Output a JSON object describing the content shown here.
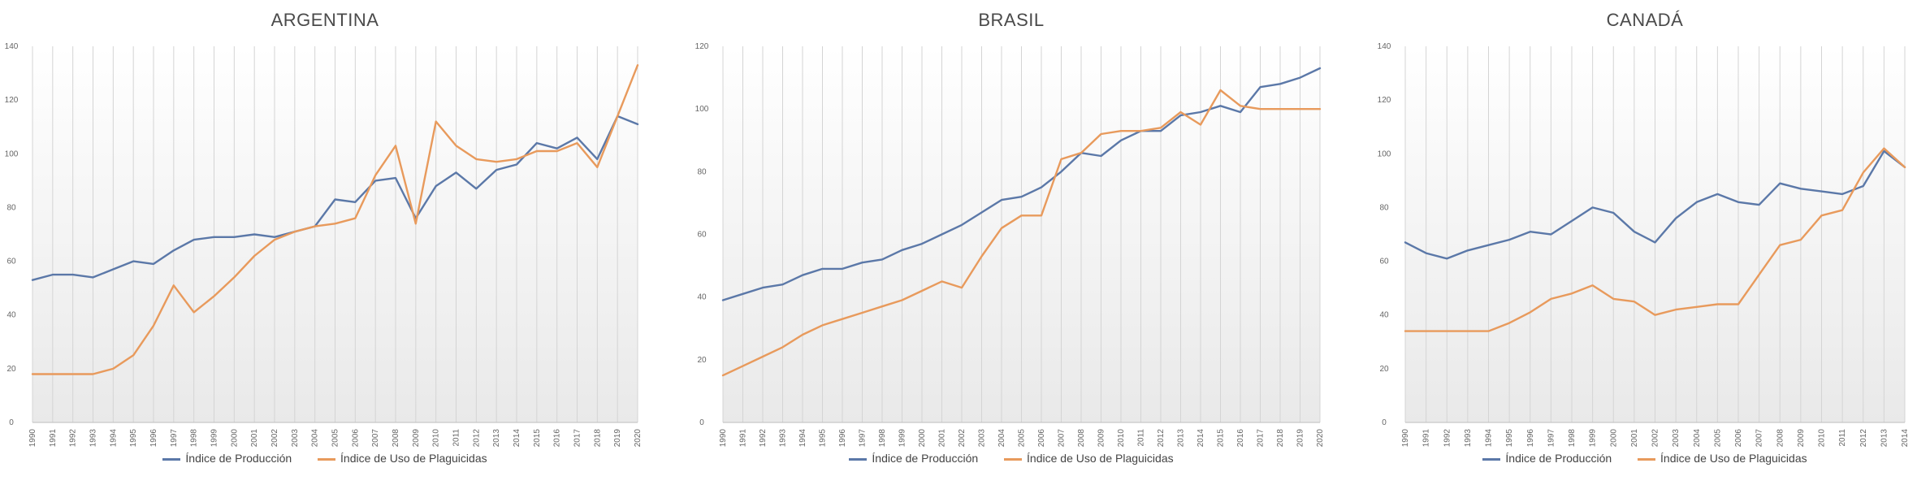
{
  "legend": {
    "production": "Índice de Producción",
    "pesticides": "Índice de Uso de Plaguicidas"
  },
  "colors": {
    "production": "#5b78a8",
    "pesticides": "#e89a5c"
  },
  "chart_data": [
    {
      "type": "line",
      "title": "ARGENTINA",
      "ylim": [
        0,
        140
      ],
      "yticks": [
        0,
        20,
        40,
        60,
        80,
        100,
        120,
        140
      ],
      "x": [
        "1990",
        "1991",
        "1992",
        "1993",
        "1994",
        "1995",
        "1996",
        "1997",
        "1998",
        "1999",
        "2000",
        "2001",
        "2002",
        "2003",
        "2004",
        "2005",
        "2006",
        "2007",
        "2008",
        "2009",
        "2010",
        "2011",
        "2012",
        "2013",
        "2014",
        "2015",
        "2016",
        "2017",
        "2018",
        "2019",
        "2020"
      ],
      "series": [
        {
          "name": "Índice de Producción",
          "values": [
            53,
            55,
            55,
            54,
            57,
            60,
            59,
            64,
            68,
            69,
            69,
            70,
            69,
            71,
            73,
            83,
            82,
            90,
            91,
            76,
            88,
            93,
            87,
            94,
            96,
            104,
            102,
            106,
            98,
            114,
            111
          ]
        },
        {
          "name": "Índice de Uso de Plaguicidas",
          "values": [
            18,
            18,
            18,
            18,
            20,
            25,
            36,
            51,
            41,
            47,
            54,
            62,
            68,
            71,
            73,
            74,
            76,
            92,
            103,
            74,
            112,
            103,
            98,
            97,
            98,
            101,
            101,
            104,
            95,
            114,
            133
          ]
        }
      ],
      "grid": true,
      "legend_position": "bottom"
    },
    {
      "type": "line",
      "title": "BRASIL",
      "ylim": [
        0,
        120
      ],
      "yticks": [
        0,
        20,
        40,
        60,
        80,
        100,
        120
      ],
      "x": [
        "1990",
        "1991",
        "1992",
        "1993",
        "1994",
        "1995",
        "1996",
        "1997",
        "1998",
        "1999",
        "2000",
        "2001",
        "2002",
        "2003",
        "2004",
        "2005",
        "2006",
        "2007",
        "2008",
        "2009",
        "2010",
        "2011",
        "2012",
        "2013",
        "2014",
        "2015",
        "2016",
        "2017",
        "2018",
        "2019",
        "2020"
      ],
      "series": [
        {
          "name": "Índice de Producción",
          "values": [
            39,
            41,
            43,
            44,
            47,
            49,
            49,
            51,
            52,
            55,
            57,
            60,
            63,
            67,
            71,
            72,
            75,
            80,
            86,
            85,
            90,
            93,
            93,
            98,
            99,
            101,
            99,
            107,
            108,
            110,
            113
          ]
        },
        {
          "name": "Índice de Uso de Plaguicidas",
          "values": [
            15,
            18,
            21,
            24,
            28,
            31,
            33,
            35,
            37,
            39,
            42,
            45,
            43,
            53,
            62,
            66,
            66,
            84,
            86,
            92,
            93,
            93,
            94,
            99,
            95,
            106,
            101,
            100,
            100,
            100,
            100
          ]
        }
      ],
      "grid": true,
      "legend_position": "bottom"
    },
    {
      "type": "line",
      "title": "CANADÁ",
      "ylim": [
        0,
        140
      ],
      "yticks": [
        0,
        20,
        40,
        60,
        80,
        100,
        120,
        140
      ],
      "x": [
        "1990",
        "1991",
        "1992",
        "1993",
        "1994",
        "1995",
        "1996",
        "1997",
        "1998",
        "1999",
        "2000",
        "2001",
        "2002",
        "2003",
        "2004",
        "2005",
        "2006",
        "2007",
        "2008",
        "2009",
        "2010",
        "2011",
        "2012",
        "2013",
        "2014"
      ],
      "series": [
        {
          "name": "Índice de Producción",
          "values": [
            67,
            63,
            61,
            64,
            66,
            68,
            71,
            70,
            75,
            80,
            78,
            71,
            67,
            76,
            82,
            85,
            82,
            81,
            89,
            87,
            86,
            85,
            88,
            101,
            95
          ]
        },
        {
          "name": "Índice de Uso de Plaguicidas",
          "values": [
            34,
            34,
            34,
            34,
            34,
            37,
            41,
            46,
            48,
            51,
            46,
            45,
            40,
            42,
            43,
            44,
            44,
            55,
            66,
            68,
            77,
            79,
            93,
            102,
            95
          ]
        }
      ],
      "grid": true,
      "legend_position": "bottom"
    }
  ]
}
